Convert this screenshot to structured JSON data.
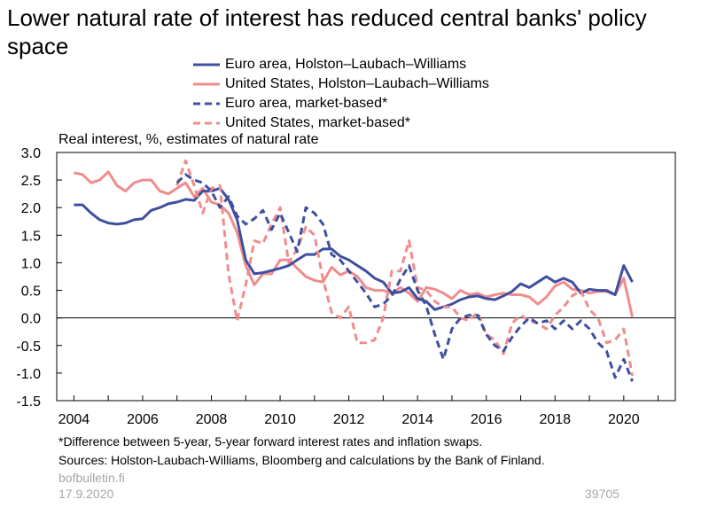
{
  "title": "Lower natural rate of interest has reduced central banks' policy space",
  "y_unit_label": "Real interest, %, estimates of natural rate",
  "footnote": "*Difference between 5-year, 5-year forward interest rates and inflation swaps.",
  "sources": "Sources: Holston-Laubach-Williams, Bloomberg and calculations by the Bank of Finland.",
  "website": "bofbulletin.fi",
  "date": "17.9.2020",
  "chart_id": "39705",
  "chart_data": {
    "type": "line",
    "title": "Lower natural rate of interest has reduced central banks' policy space",
    "ylabel": "Real interest, %, estimates of natural rate",
    "xlim": [
      2003.5,
      2021.5
    ],
    "ylim": [
      -1.5,
      3.0
    ],
    "x_ticks": [
      2004,
      2006,
      2008,
      2010,
      2012,
      2014,
      2016,
      2018,
      2020
    ],
    "y_ticks": [
      "3.0",
      "2.5",
      "2.0",
      "1.5",
      "1.0",
      "0.5",
      "0.0",
      "-0.5",
      "-1.0",
      "-1.5"
    ],
    "legend_position": "top",
    "grid": false,
    "series": [
      {
        "name": "Euro area, Holston–Laubach–Williams",
        "color": "#3f4fa0",
        "style": "solid",
        "points": [
          [
            2004.0,
            2.05
          ],
          [
            2004.25,
            2.05
          ],
          [
            2004.5,
            1.9
          ],
          [
            2004.75,
            1.78
          ],
          [
            2005.0,
            1.72
          ],
          [
            2005.25,
            1.7
          ],
          [
            2005.5,
            1.72
          ],
          [
            2005.75,
            1.78
          ],
          [
            2006.0,
            1.8
          ],
          [
            2006.25,
            1.95
          ],
          [
            2006.5,
            2.0
          ],
          [
            2006.75,
            2.07
          ],
          [
            2007.0,
            2.1
          ],
          [
            2007.25,
            2.15
          ],
          [
            2007.5,
            2.13
          ],
          [
            2007.75,
            2.3
          ],
          [
            2008.0,
            2.3
          ],
          [
            2008.25,
            2.35
          ],
          [
            2008.5,
            2.15
          ],
          [
            2008.75,
            1.78
          ],
          [
            2009.0,
            1.05
          ],
          [
            2009.25,
            0.8
          ],
          [
            2009.5,
            0.82
          ],
          [
            2009.75,
            0.86
          ],
          [
            2010.0,
            0.9
          ],
          [
            2010.25,
            0.95
          ],
          [
            2010.5,
            1.05
          ],
          [
            2010.75,
            1.15
          ],
          [
            2011.0,
            1.15
          ],
          [
            2011.25,
            1.25
          ],
          [
            2011.5,
            1.25
          ],
          [
            2011.75,
            1.12
          ],
          [
            2012.0,
            1.05
          ],
          [
            2012.25,
            0.95
          ],
          [
            2012.5,
            0.85
          ],
          [
            2012.75,
            0.72
          ],
          [
            2013.0,
            0.65
          ],
          [
            2013.25,
            0.45
          ],
          [
            2013.5,
            0.47
          ],
          [
            2013.75,
            0.55
          ],
          [
            2014.0,
            0.35
          ],
          [
            2014.25,
            0.3
          ],
          [
            2014.5,
            0.15
          ],
          [
            2014.75,
            0.2
          ],
          [
            2015.0,
            0.25
          ],
          [
            2015.25,
            0.33
          ],
          [
            2015.5,
            0.38
          ],
          [
            2015.75,
            0.4
          ],
          [
            2016.0,
            0.35
          ],
          [
            2016.25,
            0.33
          ],
          [
            2016.5,
            0.4
          ],
          [
            2016.75,
            0.48
          ],
          [
            2017.0,
            0.62
          ],
          [
            2017.25,
            0.55
          ],
          [
            2017.5,
            0.65
          ],
          [
            2017.75,
            0.75
          ],
          [
            2018.0,
            0.65
          ],
          [
            2018.25,
            0.72
          ],
          [
            2018.5,
            0.65
          ],
          [
            2018.75,
            0.45
          ],
          [
            2019.0,
            0.52
          ],
          [
            2019.25,
            0.5
          ],
          [
            2019.5,
            0.5
          ],
          [
            2019.75,
            0.42
          ],
          [
            2020.0,
            0.95
          ],
          [
            2020.25,
            0.65
          ]
        ]
      },
      {
        "name": "United States, Holston–Laubach–Williams",
        "color": "#f08c8c",
        "style": "solid",
        "points": [
          [
            2004.0,
            2.63
          ],
          [
            2004.25,
            2.6
          ],
          [
            2004.5,
            2.45
          ],
          [
            2004.75,
            2.5
          ],
          [
            2005.0,
            2.65
          ],
          [
            2005.25,
            2.4
          ],
          [
            2005.5,
            2.3
          ],
          [
            2005.75,
            2.45
          ],
          [
            2006.0,
            2.5
          ],
          [
            2006.25,
            2.5
          ],
          [
            2006.5,
            2.3
          ],
          [
            2006.75,
            2.25
          ],
          [
            2007.0,
            2.35
          ],
          [
            2007.25,
            2.45
          ],
          [
            2007.5,
            2.2
          ],
          [
            2007.75,
            2.35
          ],
          [
            2008.0,
            2.1
          ],
          [
            2008.25,
            2.05
          ],
          [
            2008.5,
            1.9
          ],
          [
            2008.75,
            1.55
          ],
          [
            2009.0,
            0.95
          ],
          [
            2009.25,
            0.6
          ],
          [
            2009.5,
            0.8
          ],
          [
            2009.75,
            0.8
          ],
          [
            2010.0,
            1.05
          ],
          [
            2010.25,
            1.05
          ],
          [
            2010.5,
            0.9
          ],
          [
            2010.75,
            0.75
          ],
          [
            2011.0,
            0.68
          ],
          [
            2011.25,
            0.65
          ],
          [
            2011.5,
            0.92
          ],
          [
            2011.75,
            0.78
          ],
          [
            2012.0,
            0.85
          ],
          [
            2012.25,
            0.75
          ],
          [
            2012.5,
            0.55
          ],
          [
            2012.75,
            0.5
          ],
          [
            2013.0,
            0.5
          ],
          [
            2013.25,
            0.45
          ],
          [
            2013.5,
            0.55
          ],
          [
            2013.75,
            0.45
          ],
          [
            2014.0,
            0.3
          ],
          [
            2014.25,
            0.55
          ],
          [
            2014.5,
            0.52
          ],
          [
            2014.75,
            0.45
          ],
          [
            2015.0,
            0.35
          ],
          [
            2015.25,
            0.5
          ],
          [
            2015.5,
            0.42
          ],
          [
            2015.75,
            0.45
          ],
          [
            2016.0,
            0.38
          ],
          [
            2016.25,
            0.42
          ],
          [
            2016.5,
            0.45
          ],
          [
            2016.75,
            0.42
          ],
          [
            2017.0,
            0.42
          ],
          [
            2017.25,
            0.38
          ],
          [
            2017.5,
            0.25
          ],
          [
            2017.75,
            0.38
          ],
          [
            2018.0,
            0.58
          ],
          [
            2018.25,
            0.65
          ],
          [
            2018.5,
            0.52
          ],
          [
            2018.75,
            0.5
          ],
          [
            2019.0,
            0.45
          ],
          [
            2019.25,
            0.48
          ],
          [
            2019.5,
            0.48
          ],
          [
            2019.75,
            0.42
          ],
          [
            2020.0,
            0.72
          ],
          [
            2020.25,
            0.02
          ]
        ]
      },
      {
        "name": "Euro area, market-based*",
        "color": "#3f4fa0",
        "style": "dashed",
        "points": [
          [
            2007.0,
            2.45
          ],
          [
            2007.25,
            2.6
          ],
          [
            2007.5,
            2.5
          ],
          [
            2007.75,
            2.45
          ],
          [
            2008.0,
            2.3
          ],
          [
            2008.25,
            2.0
          ],
          [
            2008.5,
            2.2
          ],
          [
            2008.75,
            1.85
          ],
          [
            2009.0,
            1.7
          ],
          [
            2009.25,
            1.8
          ],
          [
            2009.5,
            1.95
          ],
          [
            2009.75,
            1.6
          ],
          [
            2010.0,
            1.9
          ],
          [
            2010.25,
            1.55
          ],
          [
            2010.5,
            1.2
          ],
          [
            2010.75,
            2.0
          ],
          [
            2011.0,
            1.9
          ],
          [
            2011.25,
            1.7
          ],
          [
            2011.5,
            1.15
          ],
          [
            2011.75,
            1.05
          ],
          [
            2012.0,
            0.85
          ],
          [
            2012.25,
            0.65
          ],
          [
            2012.5,
            0.45
          ],
          [
            2012.75,
            0.2
          ],
          [
            2013.0,
            0.25
          ],
          [
            2013.25,
            0.4
          ],
          [
            2013.5,
            0.7
          ],
          [
            2013.75,
            0.95
          ],
          [
            2014.0,
            0.5
          ],
          [
            2014.25,
            0.22
          ],
          [
            2014.5,
            -0.3
          ],
          [
            2014.75,
            -0.75
          ],
          [
            2015.0,
            -0.2
          ],
          [
            2015.25,
            0.0
          ],
          [
            2015.5,
            0.05
          ],
          [
            2015.75,
            0.05
          ],
          [
            2016.0,
            -0.3
          ],
          [
            2016.25,
            -0.5
          ],
          [
            2016.5,
            -0.6
          ],
          [
            2016.75,
            -0.35
          ],
          [
            2017.0,
            -0.15
          ],
          [
            2017.25,
            0.0
          ],
          [
            2017.5,
            -0.1
          ],
          [
            2017.75,
            -0.05
          ],
          [
            2018.0,
            -0.2
          ],
          [
            2018.25,
            -0.05
          ],
          [
            2018.5,
            -0.2
          ],
          [
            2018.75,
            -0.05
          ],
          [
            2019.0,
            -0.2
          ],
          [
            2019.25,
            -0.45
          ],
          [
            2019.5,
            -0.6
          ],
          [
            2019.75,
            -1.08
          ],
          [
            2020.0,
            -0.75
          ],
          [
            2020.25,
            -1.15
          ]
        ]
      },
      {
        "name": "United States, market-based*",
        "color": "#f08c8c",
        "style": "dashed",
        "points": [
          [
            2007.0,
            2.4
          ],
          [
            2007.25,
            2.85
          ],
          [
            2007.5,
            2.4
          ],
          [
            2007.75,
            1.9
          ],
          [
            2008.0,
            2.35
          ],
          [
            2008.25,
            2.4
          ],
          [
            2008.5,
            0.8
          ],
          [
            2008.75,
            -0.05
          ],
          [
            2009.0,
            0.6
          ],
          [
            2009.25,
            1.4
          ],
          [
            2009.5,
            1.35
          ],
          [
            2009.75,
            1.7
          ],
          [
            2010.0,
            2.0
          ],
          [
            2010.25,
            1.0
          ],
          [
            2010.5,
            1.25
          ],
          [
            2010.75,
            1.65
          ],
          [
            2011.0,
            1.5
          ],
          [
            2011.25,
            0.7
          ],
          [
            2011.5,
            0.1
          ],
          [
            2011.75,
            0.0
          ],
          [
            2012.0,
            0.2
          ],
          [
            2012.25,
            -0.45
          ],
          [
            2012.5,
            -0.45
          ],
          [
            2012.75,
            -0.4
          ],
          [
            2013.0,
            0.0
          ],
          [
            2013.25,
            0.85
          ],
          [
            2013.5,
            0.85
          ],
          [
            2013.75,
            1.4
          ],
          [
            2014.0,
            0.55
          ],
          [
            2014.25,
            0.5
          ],
          [
            2014.5,
            0.3
          ],
          [
            2014.75,
            0.2
          ],
          [
            2015.0,
            0.2
          ],
          [
            2015.25,
            0.0
          ],
          [
            2015.5,
            -0.05
          ],
          [
            2015.75,
            0.1
          ],
          [
            2016.0,
            -0.3
          ],
          [
            2016.25,
            -0.4
          ],
          [
            2016.5,
            -0.65
          ],
          [
            2016.75,
            -0.1
          ],
          [
            2017.0,
            0.05
          ],
          [
            2017.25,
            -0.05
          ],
          [
            2017.5,
            -0.1
          ],
          [
            2017.75,
            -0.2
          ],
          [
            2018.0,
            0.05
          ],
          [
            2018.25,
            0.2
          ],
          [
            2018.5,
            0.4
          ],
          [
            2018.75,
            0.5
          ],
          [
            2019.0,
            0.15
          ],
          [
            2019.25,
            0.0
          ],
          [
            2019.5,
            -0.45
          ],
          [
            2019.75,
            -0.4
          ],
          [
            2020.0,
            -0.2
          ],
          [
            2020.25,
            -1.05
          ]
        ]
      }
    ]
  }
}
